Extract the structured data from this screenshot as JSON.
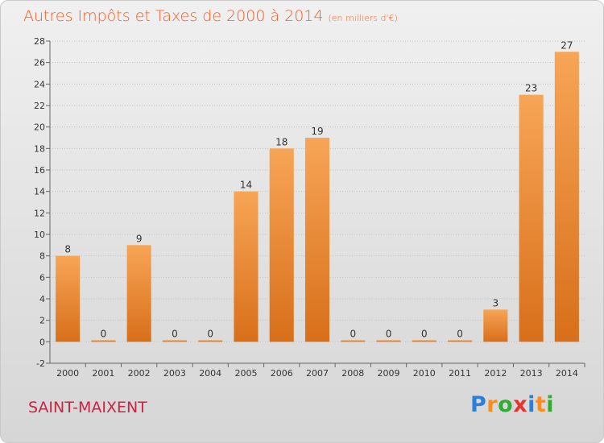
{
  "header": {
    "title": "Autres Impôts et Taxes de 2000 à 2014",
    "subtitle": "(en milliers d'€)"
  },
  "footer": {
    "commune": "SAINT-MAIXENT",
    "logo_letters": [
      "P",
      "r",
      "o",
      "x",
      "i",
      "t",
      "i"
    ],
    "logo_colors": [
      "#2b7fd9",
      "#ff8c1a",
      "#33aa33",
      "#e8322e",
      "#2b7fd9",
      "#ff8c1a",
      "#33aa33"
    ]
  },
  "chart_data": {
    "type": "bar",
    "title": "Autres Impôts et Taxes de 2000 à 2014",
    "subtitle": "(en milliers d'€)",
    "categories": [
      "2000",
      "2001",
      "2002",
      "2003",
      "2004",
      "2005",
      "2006",
      "2007",
      "2008",
      "2009",
      "2010",
      "2011",
      "2012",
      "2013",
      "2014"
    ],
    "values": [
      8,
      0,
      9,
      0,
      0,
      14,
      18,
      19,
      0,
      0,
      0,
      0,
      3,
      23,
      27
    ],
    "data_labels": [
      "8",
      "0",
      "9",
      "0",
      "0",
      "14",
      "18",
      "19",
      "0",
      "0",
      "0",
      "0",
      "3",
      "23",
      "27"
    ],
    "ylim": [
      -2,
      28
    ],
    "yticks": [
      -2,
      0,
      2,
      4,
      6,
      8,
      10,
      12,
      14,
      16,
      18,
      20,
      22,
      24,
      26,
      28
    ],
    "ytick_labels": [
      "-2",
      "0",
      "2",
      "4",
      "6",
      "8",
      "10",
      "12",
      "14",
      "16",
      "18",
      "20",
      "22",
      "24",
      "26",
      "28"
    ],
    "grid": "horizontal",
    "bar_color": "#f0903a"
  }
}
